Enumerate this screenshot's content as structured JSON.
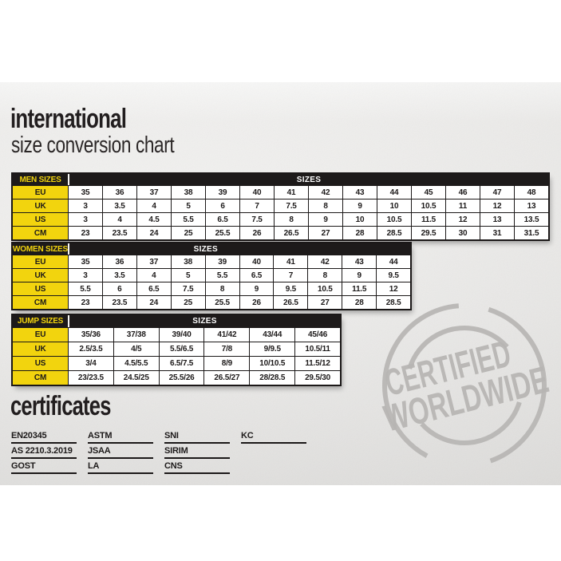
{
  "header": {
    "title_bold": "international",
    "title_light": "size conversion chart"
  },
  "tables": [
    {
      "label": "MEN SIZES",
      "sizes_label": "SIZES",
      "rows": [
        {
          "label": "EU",
          "values": [
            "35",
            "36",
            "37",
            "38",
            "39",
            "40",
            "41",
            "42",
            "43",
            "44",
            "45",
            "46",
            "47",
            "48"
          ]
        },
        {
          "label": "UK",
          "values": [
            "3",
            "3.5",
            "4",
            "5",
            "6",
            "7",
            "7.5",
            "8",
            "9",
            "10",
            "10.5",
            "11",
            "12",
            "13"
          ]
        },
        {
          "label": "US",
          "values": [
            "3",
            "4",
            "4.5",
            "5.5",
            "6.5",
            "7.5",
            "8",
            "9",
            "10",
            "10.5",
            "11.5",
            "12",
            "13",
            "13.5"
          ]
        },
        {
          "label": "CM",
          "values": [
            "23",
            "23.5",
            "24",
            "25",
            "25.5",
            "26",
            "26.5",
            "27",
            "28",
            "28.5",
            "29.5",
            "30",
            "31",
            "31.5"
          ]
        }
      ]
    },
    {
      "label": "WOMEN SIZES",
      "sizes_label": "SIZES",
      "rows": [
        {
          "label": "EU",
          "values": [
            "35",
            "36",
            "37",
            "38",
            "39",
            "40",
            "41",
            "42",
            "43",
            "44"
          ]
        },
        {
          "label": "UK",
          "values": [
            "3",
            "3.5",
            "4",
            "5",
            "5.5",
            "6.5",
            "7",
            "8",
            "9",
            "9.5"
          ]
        },
        {
          "label": "US",
          "values": [
            "5.5",
            "6",
            "6.5",
            "7.5",
            "8",
            "9",
            "9.5",
            "10.5",
            "11.5",
            "12"
          ]
        },
        {
          "label": "CM",
          "values": [
            "23",
            "23.5",
            "24",
            "25",
            "25.5",
            "26",
            "26.5",
            "27",
            "28",
            "28.5"
          ]
        }
      ]
    },
    {
      "label": "JUMP SIZES",
      "sizes_label": "SIZES",
      "rows": [
        {
          "label": "EU",
          "values": [
            "35/36",
            "37/38",
            "39/40",
            "41/42",
            "43/44",
            "45/46"
          ]
        },
        {
          "label": "UK",
          "values": [
            "2.5/3.5",
            "4/5",
            "5.5/6.5",
            "7/8",
            "9/9.5",
            "10.5/11"
          ]
        },
        {
          "label": "US",
          "values": [
            "3/4",
            "4.5/5.5",
            "6.5/7.5",
            "8/9",
            "10/10.5",
            "11.5/12"
          ]
        },
        {
          "label": "CM",
          "values": [
            "23/23.5",
            "24.5/25",
            "25.5/26",
            "26.5/27",
            "28/28.5",
            "29.5/30"
          ]
        }
      ]
    }
  ],
  "certificates": {
    "title": "certificates",
    "columns": [
      [
        "EN20345",
        "AS 2210.3.2019",
        "GOST"
      ],
      [
        "ASTM",
        "JSAA",
        "LA"
      ],
      [
        "SNI",
        "SIRIM",
        "CNS"
      ],
      [
        "KC"
      ]
    ]
  },
  "stamp": {
    "line1": "CERTIFIED",
    "line2": "WORLDWIDE"
  },
  "colors": {
    "accent_yellow": "#f2d40e",
    "table_black": "#1d1a1a",
    "stamp_gray": "#b7b5b3"
  }
}
